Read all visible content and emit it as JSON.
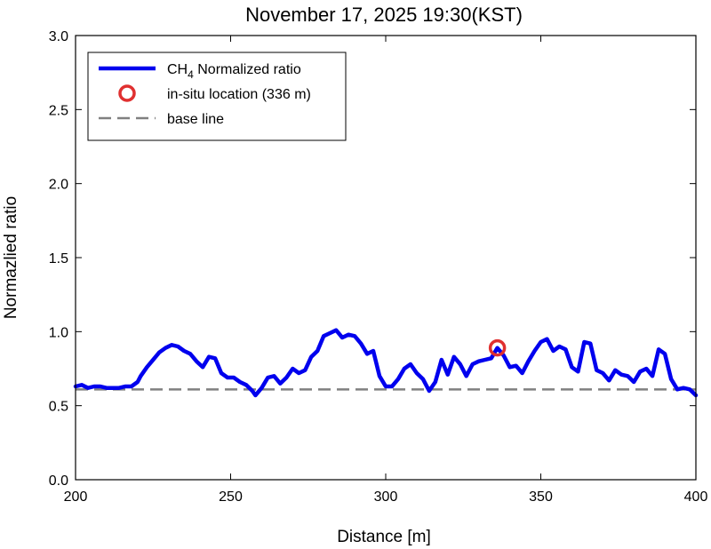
{
  "chart_data": {
    "type": "line",
    "title": "November 17, 2025 19:30(KST)",
    "xlabel": "Distance [m]",
    "ylabel": "Normazlied ratio",
    "xlim": [
      200,
      400
    ],
    "ylim": [
      0.0,
      3.0
    ],
    "xticks": [
      "200",
      "250",
      "300",
      "350",
      "400"
    ],
    "yticks": [
      "0.0",
      "0.5",
      "1.0",
      "1.5",
      "2.0",
      "2.5",
      "3.0"
    ],
    "grid": false,
    "legend_position": "top-left",
    "series": [
      {
        "name": "CH4 Normalized ratio",
        "legend_main": "CH",
        "legend_sub": "4",
        "legend_rest": " Normalized ratio",
        "color": "#0000ee",
        "style": "solid",
        "x": [
          200,
          202,
          204,
          206,
          208,
          210,
          212,
          214,
          216,
          218,
          220,
          221,
          223,
          225,
          227,
          229,
          231,
          233,
          235,
          237,
          239,
          241,
          243,
          245,
          247,
          249,
          251,
          253,
          255,
          257,
          258,
          260,
          262,
          264,
          266,
          268,
          270,
          272,
          274,
          276,
          278,
          280,
          282,
          284,
          286,
          288,
          290,
          292,
          294,
          296,
          298,
          300,
          302,
          304,
          306,
          308,
          310,
          312,
          314,
          316,
          318,
          320,
          322,
          324,
          326,
          328,
          330,
          332,
          334,
          336,
          338,
          340,
          342,
          344,
          346,
          348,
          350,
          352,
          354,
          356,
          358,
          360,
          362,
          364,
          366,
          368,
          370,
          372,
          374,
          376,
          378,
          380,
          382,
          384,
          386,
          388,
          390,
          392,
          394,
          396,
          398,
          400
        ],
        "y": [
          0.63,
          0.64,
          0.62,
          0.63,
          0.63,
          0.62,
          0.62,
          0.62,
          0.63,
          0.63,
          0.66,
          0.7,
          0.76,
          0.81,
          0.86,
          0.89,
          0.91,
          0.9,
          0.87,
          0.85,
          0.8,
          0.76,
          0.83,
          0.82,
          0.72,
          0.69,
          0.69,
          0.66,
          0.64,
          0.6,
          0.57,
          0.62,
          0.69,
          0.7,
          0.65,
          0.69,
          0.75,
          0.72,
          0.74,
          0.83,
          0.87,
          0.97,
          0.99,
          1.01,
          0.96,
          0.98,
          0.97,
          0.92,
          0.85,
          0.87,
          0.7,
          0.63,
          0.63,
          0.68,
          0.75,
          0.78,
          0.72,
          0.68,
          0.6,
          0.66,
          0.81,
          0.71,
          0.83,
          0.78,
          0.7,
          0.78,
          0.8,
          0.81,
          0.82,
          0.89,
          0.84,
          0.76,
          0.77,
          0.72,
          0.8,
          0.87,
          0.93,
          0.95,
          0.87,
          0.9,
          0.88,
          0.76,
          0.73,
          0.93,
          0.92,
          0.74,
          0.72,
          0.67,
          0.74,
          0.71,
          0.7,
          0.66,
          0.73,
          0.75,
          0.7,
          0.88,
          0.85,
          0.68,
          0.61,
          0.62,
          0.61,
          0.57
        ]
      },
      {
        "name": "base line",
        "color": "#808080",
        "style": "dashed",
        "x": [
          200,
          400
        ],
        "y": [
          0.61,
          0.61
        ]
      }
    ],
    "points": [
      {
        "name": "in-situ location (336 m)",
        "x": 336,
        "y": 0.89,
        "color": "#e03030"
      }
    ]
  }
}
